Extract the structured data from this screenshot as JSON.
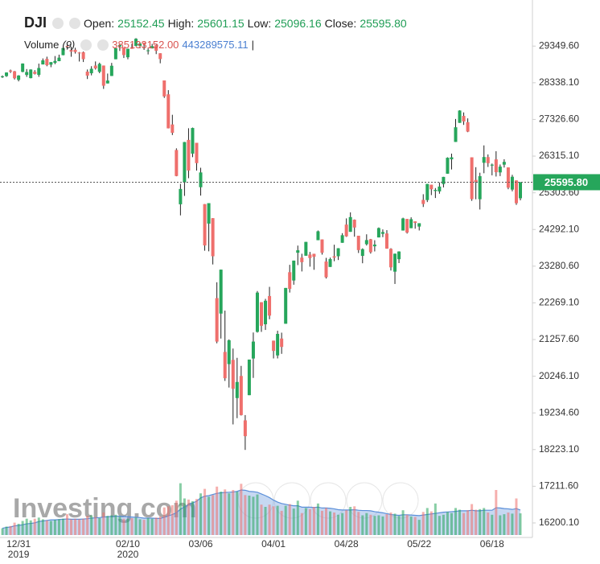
{
  "chart_data": {
    "type": "candlestick",
    "series": [
      {
        "name": "DJI",
        "up_color": "#26a65b",
        "down_color": "#ef6f6c",
        "open": [
          28490,
          28522,
          28675,
          28654,
          28417,
          28638,
          28553,
          28466,
          28640,
          28556,
          28843,
          28996,
          28837,
          28886,
          28934,
          29099,
          29350,
          29240,
          29248,
          29170,
          29181,
          28645,
          28600,
          28812,
          28640,
          28813,
          28319,
          28525,
          28986,
          29336,
          29313,
          29041,
          29305,
          29352,
          29351,
          29441,
          29227,
          29285,
          29373,
          29152,
          28402,
          28019,
          27188,
          26484,
          24987,
          25591,
          26762,
          26384,
          26682,
          25457,
          24992,
          24454,
          24604,
          22400,
          21973,
          20916,
          20579,
          20697,
          19643,
          20253,
          19029,
          19723,
          20734,
          21469,
          22287,
          21678,
          22457,
          21227,
          20819,
          21285,
          21693,
          23114,
          22885,
          23651,
          23516,
          23568,
          23601,
          23621,
          23997,
          24018,
          23410,
          23259,
          23553,
          23554,
          23925,
          24427,
          24227,
          24562,
          24120,
          23564,
          23886,
          24023,
          23828,
          24073,
          24172,
          24183,
          23759,
          23129,
          23472,
          24263,
          24583,
          24328,
          24515,
          24372,
          25108,
          25103,
          25527,
          25353,
          25343,
          25545,
          25830,
          26228,
          26706,
          27232,
          27424,
          27251,
          26282,
          25659,
          25126,
          26131,
          26289,
          26054,
          26226,
          25866,
          26079,
          26004,
          25392,
          25645,
          25152.45
        ],
        "high": [
          28540,
          28625,
          28701,
          28664,
          28547,
          28872,
          28716,
          28708,
          28686,
          28866,
          29009,
          29057,
          28908,
          29075,
          29113,
          29297,
          29374,
          29333,
          29303,
          29185,
          29200,
          28704,
          28795,
          28926,
          28892,
          28813,
          28592,
          28886,
          29291,
          29409,
          29313,
          29276,
          29415,
          29568,
          29463,
          29442,
          29283,
          29410,
          29391,
          29152,
          28402,
          28134,
          27455,
          26530,
          25550,
          26707,
          27084,
          27102,
          26682,
          25994,
          24992,
          25018,
          24604,
          22837,
          23186,
          22055,
          21261,
          21009,
          20753,
          20531,
          19174,
          20704,
          21452,
          22595,
          22287,
          22379,
          22710,
          21227,
          21500,
          21447,
          22680,
          23318,
          23434,
          23848,
          23623,
          23950,
          23673,
          23623,
          24264,
          24018,
          23510,
          23516,
          23872,
          23778,
          24190,
          24598,
          24764,
          24569,
          24120,
          23772,
          24159,
          24032,
          23996,
          24348,
          24294,
          24274,
          23777,
          23626,
          23690,
          24617,
          24583,
          24628,
          24515,
          24465,
          25264,
          25548,
          25527,
          25434,
          25588,
          25744,
          26282,
          26384,
          27338,
          27580,
          27520,
          27356,
          26282,
          26010,
          25857,
          26611,
          26362,
          26110,
          26451,
          26084,
          26229,
          26004,
          25800,
          25645,
          25601.15
        ],
        "low": [
          28470,
          28500,
          28608,
          28428,
          28376,
          28627,
          28500,
          28460,
          28566,
          28502,
          28843,
          28793,
          28767,
          28851,
          28931,
          29095,
          29254,
          29055,
          29143,
          28924,
          28910,
          28441,
          28542,
          28702,
          28602,
          28169,
          28319,
          28525,
          28986,
          29215,
          29021,
          28986,
          29275,
          29352,
          29289,
          29245,
          29119,
          29285,
          29128,
          28875,
          27921,
          27079,
          26896,
          25759,
          24681,
          25218,
          25706,
          26286,
          25917,
          25227,
          23707,
          23690,
          23328,
          21154,
          21285,
          20116,
          19934,
          18917,
          19089,
          19162,
          18214,
          19723,
          20199,
          21448,
          21469,
          21522,
          21817,
          20736,
          20736,
          20863,
          21693,
          22553,
          22769,
          23310,
          23135,
          23568,
          23267,
          23181,
          23997,
          23599,
          22942,
          23259,
          23417,
          23450,
          23925,
          24088,
          24227,
          24093,
          23644,
          23361,
          23850,
          23627,
          23687,
          24073,
          24081,
          23761,
          23159,
          22790,
          23365,
          24263,
          24180,
          24328,
          24314,
          24265,
          24912,
          25048,
          25240,
          25160,
          25278,
          25452,
          25830,
          25947,
          26706,
          27232,
          27176,
          26976,
          25082,
          25125,
          24843,
          25843,
          26016,
          25785,
          25752,
          25764,
          26000,
          25402,
          25344,
          24971,
          25096.16
        ],
        "close": [
          28515,
          28621,
          28645,
          28462,
          28538,
          28868,
          28634,
          28703,
          28583,
          28745,
          28956,
          28823,
          28907,
          28940,
          29030,
          29297,
          29348,
          29196,
          29186,
          29160,
          28989,
          28535,
          28723,
          28734,
          28859,
          28256,
          28399,
          28807,
          29290,
          29379,
          29102,
          29276,
          29276,
          29551,
          29423,
          29398,
          29232,
          29348,
          29219,
          28992,
          27961,
          27081,
          26957,
          25766,
          25409,
          26703,
          25918,
          27091,
          26121,
          25865,
          23851,
          25018,
          23553,
          21200,
          23185,
          20189,
          21237,
          19899,
          20087,
          19174,
          18592,
          20705,
          21201,
          22552,
          21637,
          22327,
          21917,
          20944,
          21413,
          21053,
          22680,
          22654,
          23434,
          23719,
          23390,
          23950,
          23504,
          23538,
          24242,
          23650,
          22973,
          23476,
          23516,
          23775,
          24134,
          24102,
          24634,
          24346,
          23724,
          23750,
          24000,
          23665,
          23876,
          24331,
          24221,
          23765,
          23248,
          23625,
          23685,
          24597,
          24207,
          24576,
          24474,
          24465,
          24995,
          25548,
          25401,
          25383,
          25475,
          25742,
          26270,
          26282,
          27111,
          27572,
          27272,
          26990,
          25128,
          25606,
          25763,
          26290,
          26120,
          26080,
          25871,
          26025,
          26156,
          25445,
          25746,
          25016,
          25595.8
        ]
      }
    ],
    "categories": [
      null,
      null,
      null,
      null,
      "12/31\n2019",
      null,
      null,
      null,
      null,
      null,
      null,
      null,
      null,
      null,
      null,
      null,
      null,
      null,
      null,
      null,
      null,
      null,
      null,
      null,
      null,
      null,
      null,
      null,
      null,
      null,
      null,
      "02/10\n2020",
      null,
      null,
      null,
      null,
      null,
      null,
      null,
      null,
      null,
      null,
      null,
      null,
      null,
      null,
      null,
      null,
      null,
      "03/06",
      null,
      null,
      null,
      null,
      null,
      null,
      null,
      null,
      null,
      null,
      null,
      null,
      null,
      null,
      null,
      null,
      null,
      "04/01",
      null,
      null,
      null,
      null,
      null,
      null,
      null,
      null,
      null,
      null,
      null,
      null,
      null,
      null,
      null,
      null,
      null,
      "04/28",
      null,
      null,
      null,
      null,
      null,
      null,
      null,
      null,
      null,
      null,
      null,
      null,
      null,
      null,
      null,
      null,
      null,
      "05/22",
      null,
      null,
      null,
      null,
      null,
      null,
      null,
      null,
      null,
      null,
      null,
      null,
      null,
      null,
      null,
      null,
      null,
      "06/18",
      null,
      null,
      null,
      null,
      null,
      null,
      null
    ],
    "volume": {
      "name": "Volume",
      "period_label": "(9)",
      "vlim": [
        0,
        1000000000
      ],
      "up_color": "#26a65b",
      "down_color": "#ef6f6c",
      "ma_color": "#5b8fd9",
      "values": [
        120000000.0,
        150000000.0,
        160000000.0,
        220000000.0,
        200000000.0,
        250000000.0,
        290000000.0,
        260000000.0,
        290000000.0,
        310000000.0,
        280000000.0,
        260000000.0,
        250000000.0,
        270000000.0,
        280000000.0,
        290000000.0,
        370000000.0,
        280000000.0,
        290000000.0,
        280000000.0,
        290000000.0,
        340000000.0,
        350000000.0,
        320000000.0,
        300000000.0,
        400000000.0,
        340000000.0,
        350000000.0,
        360000000.0,
        330000000.0,
        290000000.0,
        290000000.0,
        300000000.0,
        310000000.0,
        280000000.0,
        270000000.0,
        300000000.0,
        290000000.0,
        310000000.0,
        330000000.0,
        490000000.0,
        510000000.0,
        530000000.0,
        610000000.0,
        920000000.0,
        650000000.0,
        630000000.0,
        600000000.0,
        640000000.0,
        740000000.0,
        820000000.0,
        680000000.0,
        710000000.0,
        860000000.0,
        770000000.0,
        810000000.0,
        740000000.0,
        800000000.0,
        770000000.0,
        910000000.0,
        710000000.0,
        700000000.0,
        680000000.0,
        720000000.0,
        540000000.0,
        500000000.0,
        540000000.0,
        510000000.0,
        520000000.0,
        430000000.0,
        520000000.0,
        550000000.0,
        470000000.0,
        610000000.0,
        390000000.0,
        480000000.0,
        460000000.0,
        500000000.0,
        560000000.0,
        430000000.0,
        480000000.0,
        420000000.0,
        400000000.0,
        360000000.0,
        390000000.0,
        440000000.0,
        500000000.0,
        510000000.0,
        410000000.0,
        350000000.0,
        390000000.0,
        360000000.0,
        340000000.0,
        350000000.0,
        330000000.0,
        370000000.0,
        400000000.0,
        380000000.0,
        340000000.0,
        440000000.0,
        360000000.0,
        330000000.0,
        320000000.0,
        270000000.0,
        410000000.0,
        480000000.0,
        420000000.0,
        560000000.0,
        340000000.0,
        360000000.0,
        410000000.0,
        390000000.0,
        480000000.0,
        450000000.0,
        390000000.0,
        440000000.0,
        550000000.0,
        450000000.0,
        460000000.0,
        480000000.0,
        400000000.0,
        360000000.0,
        800000000.0,
        350000000.0,
        370000000.0,
        400000000.0,
        380000000.0,
        650000000.0,
        385133152
      ],
      "ma_values": [
        120000000.0,
        135000000.0,
        143000000.0,
        163000000.0,
        170000000.0,
        183000000.0,
        199000000.0,
        206000000.0,
        216000000.0,
        240000000.0,
        250000000.0,
        260000000.0,
        270000000.0,
        270000000.0,
        275000000.0,
        280000000.0,
        285000000.0,
        280000000.0,
        280000000.0,
        280000000.0,
        285000000.0,
        290000000.0,
        300000000.0,
        305000000.0,
        310000000.0,
        320000000.0,
        325000000.0,
        330000000.0,
        335000000.0,
        335000000.0,
        330000000.0,
        325000000.0,
        320000000.0,
        315000000.0,
        310000000.0,
        300000000.0,
        300000000.0,
        300000000.0,
        295000000.0,
        295000000.0,
        315000000.0,
        340000000.0,
        365000000.0,
        395000000.0,
        460000000.0,
        500000000.0,
        540000000.0,
        570000000.0,
        600000000.0,
        660000000.0,
        690000000.0,
        700000000.0,
        720000000.0,
        740000000.0,
        750000000.0,
        755000000.0,
        760000000.0,
        765000000.0,
        775000000.0,
        800000000.0,
        795000000.0,
        775000000.0,
        770000000.0,
        760000000.0,
        730000000.0,
        700000000.0,
        665000000.0,
        620000000.0,
        585000000.0,
        560000000.0,
        545000000.0,
        530000000.0,
        520000000.0,
        520000000.0,
        495000000.0,
        495000000.0,
        495000000.0,
        490000000.0,
        495000000.0,
        480000000.0,
        480000000.0,
        475000000.0,
        465000000.0,
        450000000.0,
        445000000.0,
        445000000.0,
        445000000.0,
        450000000.0,
        440000000.0,
        435000000.0,
        435000000.0,
        430000000.0,
        415000000.0,
        405000000.0,
        395000000.0,
        380000000.0,
        365000000.0,
        355000000.0,
        350000000.0,
        360000000.0,
        360000000.0,
        355000000.0,
        350000000.0,
        345000000.0,
        355000000.0,
        365000000.0,
        375000000.0,
        385000000.0,
        395000000.0,
        405000000.0,
        410000000.0,
        415000000.0,
        420000000.0,
        430000000.0,
        430000000.0,
        430000000.0,
        440000000.0,
        430000000.0,
        430000000.0,
        440000000.0,
        440000000.0,
        440000000.0,
        485000000.0,
        480000000.0,
        470000000.0,
        465000000.0,
        455000000.0,
        470000000.0,
        443289575.11
      ],
      "value_label": "385133152.00",
      "ma_value_label": "443289575.11",
      "separator": "|"
    },
    "legend": {
      "open_label": "Open:",
      "open": "25152.45",
      "high_label": "High:",
      "high": "25601.15",
      "low_label": "Low:",
      "low": "25096.16",
      "close_label": "Close:",
      "close": "25595.80"
    },
    "last_price_label": "25595.80",
    "watermark": "Investing.com",
    "ylim": [
      15800,
      30620
    ],
    "yticks": [
      {
        "value": 16200.1,
        "label": "16200.10"
      },
      {
        "value": 17211.6,
        "label": "17211.60"
      },
      {
        "value": 18223.1,
        "label": "18223.10"
      },
      {
        "value": 19234.6,
        "label": "19234.60"
      },
      {
        "value": 20246.1,
        "label": "20246.10"
      },
      {
        "value": 21257.6,
        "label": "21257.60"
      },
      {
        "value": 22269.1,
        "label": "22269.10"
      },
      {
        "value": 23280.6,
        "label": "23280.60"
      },
      {
        "value": 24292.1,
        "label": "24292.10"
      },
      {
        "value": 25303.6,
        "label": "25303.60"
      },
      {
        "value": 26315.1,
        "label": "26315.10"
      },
      {
        "value": 27326.6,
        "label": "27326.60"
      },
      {
        "value": 28338.1,
        "label": "28338.10"
      },
      {
        "value": 29349.6,
        "label": "29349.60"
      }
    ],
    "grid": false
  }
}
